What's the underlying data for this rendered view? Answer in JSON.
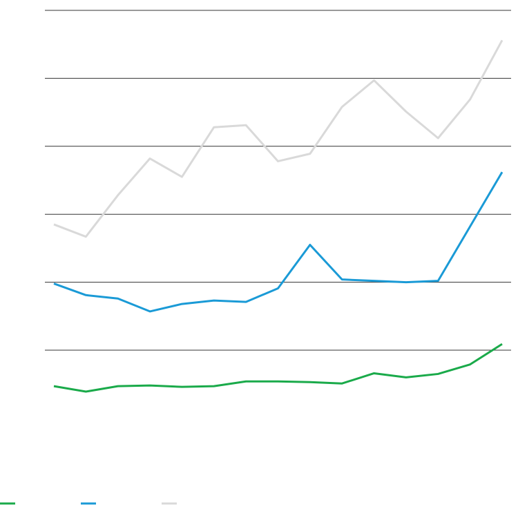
{
  "chart_data": {
    "type": "line",
    "categories": [
      null,
      null,
      null,
      null,
      null,
      null,
      null,
      null,
      null,
      null,
      null,
      null,
      null,
      null,
      null
    ],
    "series": [
      {
        "color": "#1aaa4a",
        "values": [
          -0.53,
          -0.61,
          -0.53,
          -0.52,
          -0.54,
          -0.53,
          -0.46,
          -0.46,
          -0.47,
          -0.49,
          -0.34,
          -0.4,
          -0.35,
          -0.21,
          0.09
        ]
      },
      {
        "color": "#1a9ad6",
        "values": [
          0.98,
          0.81,
          0.76,
          0.57,
          0.68,
          0.73,
          0.71,
          0.91,
          1.55,
          1.04,
          1.02,
          1.0,
          1.02,
          1.82,
          2.62
        ]
      },
      {
        "color": "#d9d9d9",
        "values": [
          1.85,
          1.67,
          2.28,
          2.82,
          2.55,
          3.28,
          3.31,
          2.78,
          2.89,
          3.58,
          3.97,
          3.51,
          3.12,
          3.69,
          4.56
        ]
      }
    ],
    "ylim": [
      -1,
      5
    ],
    "yticks": [
      0,
      1,
      2,
      3,
      4,
      5
    ],
    "grid": true,
    "legend": "bottom-left"
  }
}
